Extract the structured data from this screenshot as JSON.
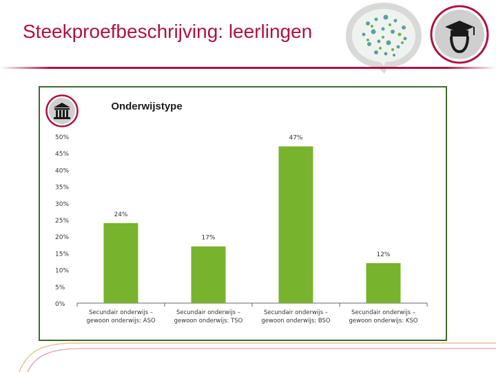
{
  "slide": {
    "title": "Steekproefbeschrijving: leerlingen"
  },
  "colors": {
    "title": "#b0113f",
    "accent": "#b0113f",
    "bar": "#77b32d",
    "frame": "#3b6b2a",
    "badge_bg": "#cfcfcf",
    "icon": "#1a1a1a"
  },
  "icons": {
    "top_right": "graduate-head-icon",
    "chart_badge": "institution-building-icon",
    "speech_bubble": "word-cloud-bubble-icon"
  },
  "chart_data": {
    "type": "bar",
    "title": "Onderwijstype",
    "categories": [
      [
        "Secundair onderwijs –",
        "gewoon onderwijs: ASO"
      ],
      [
        "Secundair onderwijs –",
        "gewoon onderwijs: TSO"
      ],
      [
        "Secundair onderwijs –",
        "gewoon onderwijs: BSO"
      ],
      [
        "Secundair onderwijs –",
        "gewoon onderwijs: KSO"
      ]
    ],
    "values": [
      24,
      17,
      47,
      12
    ],
    "value_labels": [
      "24%",
      "17%",
      "47%",
      "12%"
    ],
    "ylim": [
      0,
      50
    ],
    "yticks": [
      "0%",
      "5%",
      "10%",
      "15%",
      "20%",
      "25%",
      "30%",
      "35%",
      "40%",
      "45%",
      "50%"
    ],
    "grid": false,
    "legend": "none"
  }
}
